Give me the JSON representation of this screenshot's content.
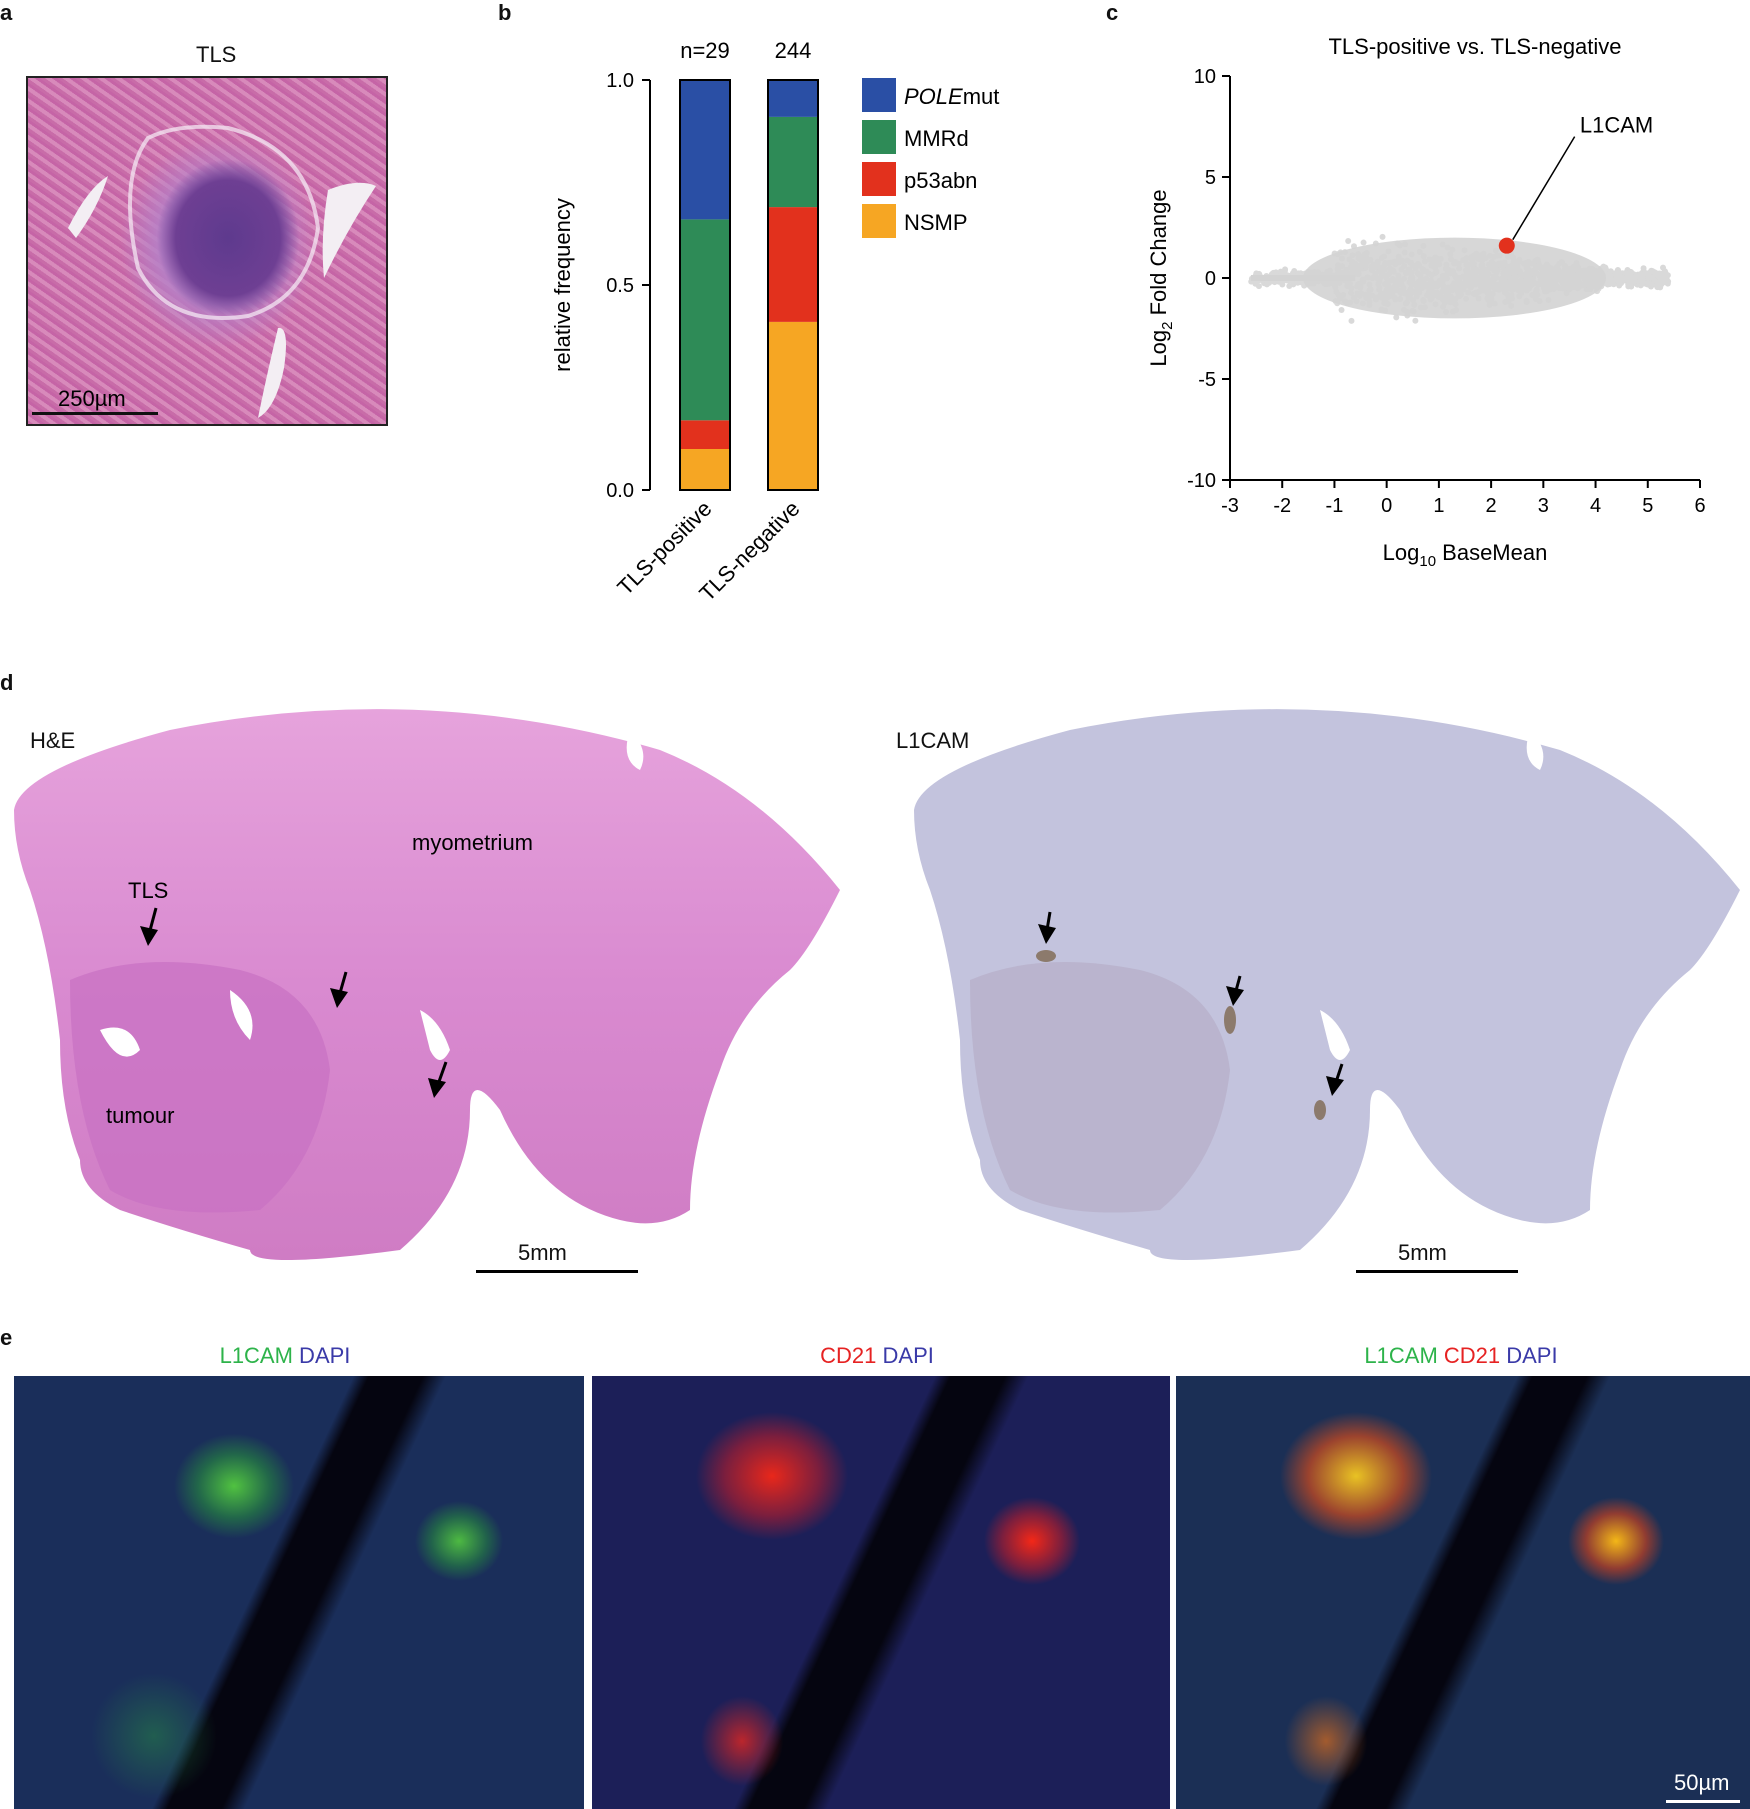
{
  "panels": {
    "a": "a",
    "b": "b",
    "c": "c",
    "d": "d",
    "e": "e"
  },
  "panel_a": {
    "title": "TLS",
    "scale_bar": "250µm"
  },
  "panel_d": {
    "he_label": "H&E",
    "l1cam_label": "L1CAM",
    "myometrium": "myometrium",
    "tls": "TLS",
    "tumour": "tumour",
    "scale_left": "5mm",
    "scale_right": "5mm"
  },
  "panel_e": {
    "img1": [
      {
        "text": "L1CAM",
        "color": "#2db34a"
      },
      {
        "text": " DAPI",
        "color": "#3a3aa8"
      }
    ],
    "img2": [
      {
        "text": "CD21",
        "color": "#e62222"
      },
      {
        "text": " DAPI",
        "color": "#3a3aa8"
      }
    ],
    "img3": [
      {
        "text": "L1CAM",
        "color": "#2db34a"
      },
      {
        "text": " CD21",
        "color": "#e62222"
      },
      {
        "text": " DAPI",
        "color": "#3a3aa8"
      }
    ],
    "scale_bar": "50µm"
  },
  "chart_data": [
    {
      "type": "bar",
      "stacked": true,
      "categories": [
        "TLS-positive",
        "TLS-negative"
      ],
      "counts": [
        "n=29",
        "244"
      ],
      "ylabel": "relative frequency",
      "ylim": [
        0,
        1.0
      ],
      "yticks": [
        "0.0",
        "0.5",
        "1.0"
      ],
      "series": [
        {
          "name": "NSMP",
          "values": [
            0.1,
            0.41
          ],
          "color": "#f6a623"
        },
        {
          "name": "p53abn",
          "values": [
            0.07,
            0.28
          ],
          "color": "#e2311d"
        },
        {
          "name": "MMRd",
          "values": [
            0.49,
            0.22
          ],
          "color": "#2e8b57"
        },
        {
          "name": "POLEmut",
          "values": [
            0.34,
            0.09
          ],
          "color": "#2a4fa5"
        }
      ],
      "legend": [
        {
          "italic": "POLE",
          "rest": "mut",
          "color": "#2a4fa5"
        },
        {
          "italic": "",
          "rest": "MMRd",
          "color": "#2e8b57"
        },
        {
          "italic": "",
          "rest": "p53abn",
          "color": "#e2311d"
        },
        {
          "italic": "",
          "rest": "NSMP",
          "color": "#f6a623"
        }
      ],
      "legend_position": "right"
    },
    {
      "type": "scatter",
      "title": "TLS-positive vs. TLS-negative",
      "xlabel_main": "Log",
      "xlabel_sub": "10",
      "xlabel_rest": " BaseMean",
      "ylabel_main": "Log",
      "ylabel_sub": "2",
      "ylabel_rest": " Fold Change",
      "xlim": [
        -3,
        6
      ],
      "ylim": [
        -10,
        10
      ],
      "xticks": [
        "-3",
        "-2",
        "-1",
        "0",
        "1",
        "2",
        "3",
        "4",
        "5",
        "6"
      ],
      "yticks": [
        "-10",
        "-5",
        "0",
        "5",
        "10"
      ],
      "highlight": {
        "label": "L1CAM",
        "x": 2.3,
        "y": 1.6,
        "color": "#e2311d"
      },
      "point_color": "#d3d3d3"
    }
  ]
}
